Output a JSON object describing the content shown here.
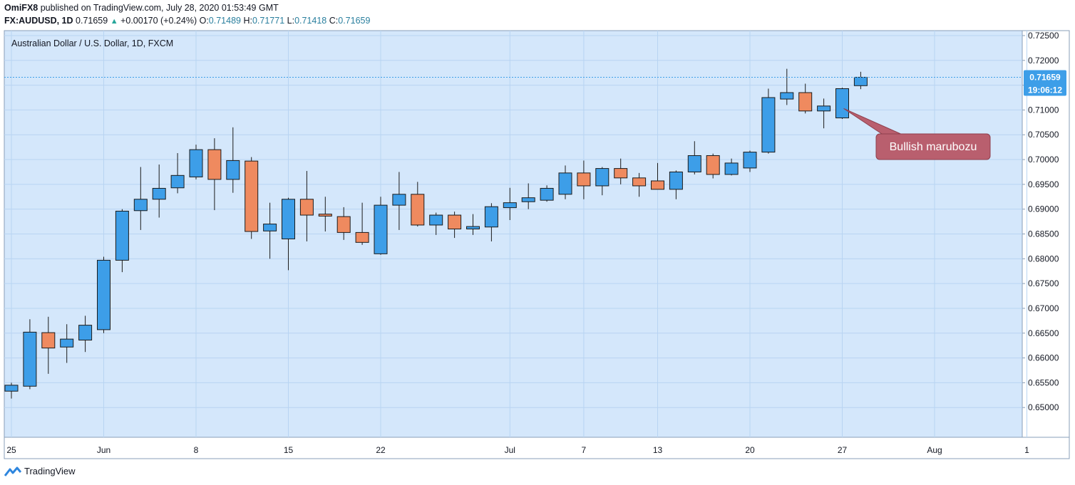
{
  "header": {
    "publisher": "OmiFX8",
    "published_text": "published on TradingView.com, July 28, 2020 01:53:49 GMT",
    "symbol": "FX:AUDUSD, 1D",
    "last": "0.71659",
    "change_arrow": "▲",
    "change": "+0.00170 (+0.24%)",
    "o_label": "O:",
    "o": "0.71489",
    "h_label": "H:",
    "h": "0.71771",
    "l_label": "L:",
    "l": "0.71418",
    "c_label": "C:",
    "c": "0.71659"
  },
  "footer": {
    "brand": "TradingView",
    "logo_icon": "tradingview-logo-icon"
  },
  "colors": {
    "up": "#3d9ee8",
    "down": "#ef8a5f",
    "background": "#d4e7fb",
    "grid": "#b8d4f2",
    "annotation": "#b95f6e"
  },
  "chart_data": {
    "type": "candlestick",
    "title": "Australian Dollar / U.S. Dollar, 1D, FXCM",
    "ylim": [
      0.644,
      0.726
    ],
    "y_ticks": [
      "0.72500",
      "0.72000",
      "0.71500",
      "0.71000",
      "0.70500",
      "0.70000",
      "0.69500",
      "0.69000",
      "0.68500",
      "0.68000",
      "0.67500",
      "0.67000",
      "0.66500",
      "0.66000",
      "0.65500",
      "0.65000"
    ],
    "x_ticks": [
      {
        "label": "25",
        "index": 0
      },
      {
        "label": "Jun",
        "index": 5
      },
      {
        "label": "8",
        "index": 10
      },
      {
        "label": "15",
        "index": 15
      },
      {
        "label": "22",
        "index": 20
      },
      {
        "label": "Jul",
        "index": 27
      },
      {
        "label": "7",
        "index": 31
      },
      {
        "label": "13",
        "index": 35
      },
      {
        "label": "20",
        "index": 40
      },
      {
        "label": "27",
        "index": 45
      },
      {
        "label": "Aug",
        "index": 50
      },
      {
        "label": "1",
        "index": 55
      }
    ],
    "last_price_label": "0.71659",
    "countdown_label": "19:06:12",
    "last_price": 0.71659,
    "annotation": {
      "text": "Bullish marubozu",
      "candle_index": 45
    },
    "candles": [
      {
        "o": 0.6533,
        "h": 0.655,
        "l": 0.6518,
        "c": 0.6545
      },
      {
        "o": 0.6543,
        "h": 0.6678,
        "l": 0.6537,
        "c": 0.6652
      },
      {
        "o": 0.6651,
        "h": 0.6683,
        "l": 0.6568,
        "c": 0.662
      },
      {
        "o": 0.6622,
        "h": 0.6668,
        "l": 0.659,
        "c": 0.6638
      },
      {
        "o": 0.6636,
        "h": 0.6685,
        "l": 0.6612,
        "c": 0.6666
      },
      {
        "o": 0.6657,
        "h": 0.6804,
        "l": 0.665,
        "c": 0.6797
      },
      {
        "o": 0.6797,
        "h": 0.69,
        "l": 0.6773,
        "c": 0.6896
      },
      {
        "o": 0.6897,
        "h": 0.6985,
        "l": 0.6858,
        "c": 0.692
      },
      {
        "o": 0.692,
        "h": 0.699,
        "l": 0.6883,
        "c": 0.6942
      },
      {
        "o": 0.6943,
        "h": 0.7013,
        "l": 0.6932,
        "c": 0.6968
      },
      {
        "o": 0.6965,
        "h": 0.703,
        "l": 0.696,
        "c": 0.702
      },
      {
        "o": 0.702,
        "h": 0.7043,
        "l": 0.6898,
        "c": 0.696
      },
      {
        "o": 0.696,
        "h": 0.7065,
        "l": 0.6933,
        "c": 0.6998
      },
      {
        "o": 0.6997,
        "h": 0.7005,
        "l": 0.684,
        "c": 0.6855
      },
      {
        "o": 0.6856,
        "h": 0.6913,
        "l": 0.68,
        "c": 0.687
      },
      {
        "o": 0.684,
        "h": 0.6923,
        "l": 0.6777,
        "c": 0.692
      },
      {
        "o": 0.692,
        "h": 0.6977,
        "l": 0.6835,
        "c": 0.6888
      },
      {
        "o": 0.689,
        "h": 0.6925,
        "l": 0.6855,
        "c": 0.6886
      },
      {
        "o": 0.6885,
        "h": 0.6904,
        "l": 0.6838,
        "c": 0.6853
      },
      {
        "o": 0.6853,
        "h": 0.6913,
        "l": 0.6828,
        "c": 0.6833
      },
      {
        "o": 0.681,
        "h": 0.6925,
        "l": 0.6808,
        "c": 0.6908
      },
      {
        "o": 0.6908,
        "h": 0.6975,
        "l": 0.6858,
        "c": 0.693
      },
      {
        "o": 0.693,
        "h": 0.6955,
        "l": 0.6865,
        "c": 0.6868
      },
      {
        "o": 0.6868,
        "h": 0.6893,
        "l": 0.6848,
        "c": 0.6888
      },
      {
        "o": 0.6888,
        "h": 0.6895,
        "l": 0.6842,
        "c": 0.686
      },
      {
        "o": 0.686,
        "h": 0.689,
        "l": 0.6848,
        "c": 0.6865
      },
      {
        "o": 0.6864,
        "h": 0.6912,
        "l": 0.6835,
        "c": 0.6905
      },
      {
        "o": 0.6903,
        "h": 0.6943,
        "l": 0.6878,
        "c": 0.6913
      },
      {
        "o": 0.6915,
        "h": 0.6952,
        "l": 0.69,
        "c": 0.6923
      },
      {
        "o": 0.6918,
        "h": 0.6948,
        "l": 0.6915,
        "c": 0.6942
      },
      {
        "o": 0.693,
        "h": 0.6988,
        "l": 0.692,
        "c": 0.6973
      },
      {
        "o": 0.6973,
        "h": 0.6998,
        "l": 0.692,
        "c": 0.6947
      },
      {
        "o": 0.6947,
        "h": 0.6985,
        "l": 0.6928,
        "c": 0.6982
      },
      {
        "o": 0.6982,
        "h": 0.7002,
        "l": 0.695,
        "c": 0.6963
      },
      {
        "o": 0.6963,
        "h": 0.6973,
        "l": 0.6925,
        "c": 0.6947
      },
      {
        "o": 0.6957,
        "h": 0.6993,
        "l": 0.694,
        "c": 0.694
      },
      {
        "o": 0.694,
        "h": 0.6978,
        "l": 0.692,
        "c": 0.6975
      },
      {
        "o": 0.6975,
        "h": 0.7037,
        "l": 0.697,
        "c": 0.7008
      },
      {
        "o": 0.7008,
        "h": 0.7012,
        "l": 0.6962,
        "c": 0.697
      },
      {
        "o": 0.697,
        "h": 0.7002,
        "l": 0.6968,
        "c": 0.6993
      },
      {
        "o": 0.6983,
        "h": 0.7018,
        "l": 0.6975,
        "c": 0.7015
      },
      {
        "o": 0.7015,
        "h": 0.7143,
        "l": 0.7012,
        "c": 0.7125
      },
      {
        "o": 0.7122,
        "h": 0.7183,
        "l": 0.711,
        "c": 0.7135
      },
      {
        "o": 0.7135,
        "h": 0.7153,
        "l": 0.7093,
        "c": 0.7098
      },
      {
        "o": 0.7098,
        "h": 0.7123,
        "l": 0.7063,
        "c": 0.7108
      },
      {
        "o": 0.7084,
        "h": 0.7145,
        "l": 0.7082,
        "c": 0.7143
      },
      {
        "o": 0.7149,
        "h": 0.7177,
        "l": 0.7142,
        "c": 0.7166
      }
    ]
  }
}
